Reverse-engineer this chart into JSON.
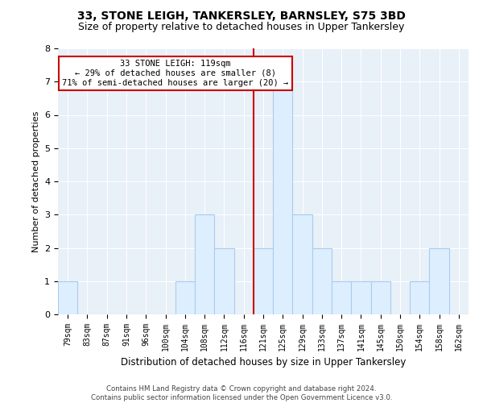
{
  "title": "33, STONE LEIGH, TANKERSLEY, BARNSLEY, S75 3BD",
  "subtitle": "Size of property relative to detached houses in Upper Tankersley",
  "xlabel": "Distribution of detached houses by size in Upper Tankersley",
  "ylabel": "Number of detached properties",
  "bins": [
    "79sqm",
    "83sqm",
    "87sqm",
    "91sqm",
    "96sqm",
    "100sqm",
    "104sqm",
    "108sqm",
    "112sqm",
    "116sqm",
    "121sqm",
    "125sqm",
    "129sqm",
    "133sqm",
    "137sqm",
    "141sqm",
    "145sqm",
    "150sqm",
    "154sqm",
    "158sqm",
    "162sqm"
  ],
  "counts": [
    1,
    0,
    0,
    0,
    0,
    0,
    1,
    3,
    2,
    0,
    2,
    7,
    3,
    2,
    1,
    1,
    1,
    0,
    1,
    2,
    0
  ],
  "bar_fill_color": "#ddeeff",
  "bar_edge_color": "#aaccee",
  "property_line_color": "#cc0000",
  "annotation_box_edge": "#cc0000",
  "ylim": [
    0,
    8
  ],
  "yticks": [
    0,
    1,
    2,
    3,
    4,
    5,
    6,
    7,
    8
  ],
  "property_line_index": 10,
  "annotation_line1": "33 STONE LEIGH: 119sqm",
  "annotation_line2": "← 29% of detached houses are smaller (8)",
  "annotation_line3": "71% of semi-detached houses are larger (20) →",
  "footer": "Contains HM Land Registry data © Crown copyright and database right 2024.\nContains public sector information licensed under the Open Government Licence v3.0.",
  "background_color": "#ffffff",
  "plot_bg_color": "#e8f0f8",
  "grid_color": "#ffffff",
  "title_fontsize": 10,
  "subtitle_fontsize": 9
}
